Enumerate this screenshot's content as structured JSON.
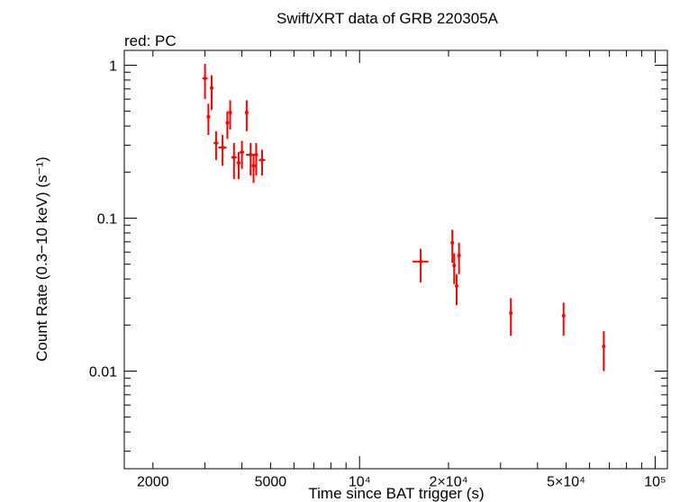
{
  "chart_data": {
    "type": "scatter",
    "title": "Swift/XRT data of GRB 220305A",
    "subtitle": "red: PC",
    "xlabel": "Time since BAT trigger (s)",
    "ylabel": "Count Rate (0.3−10 keV) (s⁻¹)",
    "xscale": "log",
    "yscale": "log",
    "xlim": [
      1600,
      110000
    ],
    "ylim": [
      0.0023,
      1.25
    ],
    "grid": false,
    "x_ticks": [
      {
        "value": 2000,
        "label": "2000"
      },
      {
        "value": 5000,
        "label": "5000"
      },
      {
        "value": 10000,
        "label": "10⁴"
      },
      {
        "value": 20000,
        "label": "2×10⁴"
      },
      {
        "value": 50000,
        "label": "5×10⁴"
      },
      {
        "value": 100000,
        "label": "10⁵"
      }
    ],
    "y_ticks": [
      {
        "value": 1,
        "label": "1"
      },
      {
        "value": 0.1,
        "label": "0.1"
      },
      {
        "value": 0.01,
        "label": "0.01"
      }
    ],
    "series": [
      {
        "color": "#ff0000",
        "points": [
          {
            "x": 3000,
            "xerr": [
              60,
              60
            ],
            "y": 0.82,
            "yerr": [
              0.22,
              0.2
            ]
          },
          {
            "x": 3080,
            "xerr": [
              40,
              40
            ],
            "y": 0.46,
            "yerr": [
              0.11,
              0.1
            ]
          },
          {
            "x": 3160,
            "xerr": [
              40,
              40
            ],
            "y": 0.71,
            "yerr": [
              0.2,
              0.15
            ]
          },
          {
            "x": 3270,
            "xerr": [
              60,
              60
            ],
            "y": 0.31,
            "yerr": [
              0.07,
              0.06
            ]
          },
          {
            "x": 3440,
            "xerr": [
              110,
              110
            ],
            "y": 0.29,
            "yerr": [
              0.07,
              0.06
            ]
          },
          {
            "x": 3570,
            "xerr": [
              40,
              40
            ],
            "y": 0.42,
            "yerr": [
              0.09,
              0.08
            ]
          },
          {
            "x": 3650,
            "xerr": [
              40,
              40
            ],
            "y": 0.49,
            "yerr": [
              0.11,
              0.1
            ]
          },
          {
            "x": 3760,
            "xerr": [
              80,
              80
            ],
            "y": 0.25,
            "yerr": [
              0.07,
              0.06
            ]
          },
          {
            "x": 3900,
            "xerr": [
              60,
              60
            ],
            "y": 0.23,
            "yerr": [
              0.05,
              0.04
            ]
          },
          {
            "x": 4000,
            "xerr": [
              70,
              70
            ],
            "y": 0.27,
            "yerr": [
              0.06,
              0.05
            ]
          },
          {
            "x": 4150,
            "xerr": [
              50,
              50
            ],
            "y": 0.49,
            "yerr": [
              0.12,
              0.1
            ]
          },
          {
            "x": 4280,
            "xerr": [
              150,
              150
            ],
            "y": 0.26,
            "yerr": [
              0.07,
              0.05
            ]
          },
          {
            "x": 4380,
            "xerr": [
              50,
              50
            ],
            "y": 0.22,
            "yerr": [
              0.05,
              0.04
            ]
          },
          {
            "x": 4470,
            "xerr": [
              60,
              60
            ],
            "y": 0.26,
            "yerr": [
              0.07,
              0.05
            ]
          },
          {
            "x": 4680,
            "xerr": [
              120,
              120
            ],
            "y": 0.24,
            "yerr": [
              0.05,
              0.04
            ]
          },
          {
            "x": 16100,
            "xerr": [
              1000,
              1000
            ],
            "y": 0.052,
            "yerr": [
              0.014,
              0.011
            ]
          },
          {
            "x": 20600,
            "xerr": [
              150,
              150
            ],
            "y": 0.069,
            "yerr": [
              0.018,
              0.015
            ]
          },
          {
            "x": 20900,
            "xerr": [
              150,
              150
            ],
            "y": 0.049,
            "yerr": [
              0.012,
              0.01
            ]
          },
          {
            "x": 21300,
            "xerr": [
              150,
              150
            ],
            "y": 0.036,
            "yerr": [
              0.009,
              0.007
            ]
          },
          {
            "x": 21700,
            "xerr": [
              150,
              150
            ],
            "y": 0.057,
            "yerr": [
              0.014,
              0.012
            ]
          },
          {
            "x": 32500,
            "xerr": [
              300,
              300
            ],
            "y": 0.024,
            "yerr": [
              0.007,
              0.006
            ]
          },
          {
            "x": 49000,
            "xerr": [
              400,
              400
            ],
            "y": 0.023,
            "yerr": [
              0.006,
              0.005
            ]
          },
          {
            "x": 67000,
            "xerr": [
              600,
              600
            ],
            "y": 0.0145,
            "yerr": [
              0.0045,
              0.0037
            ]
          }
        ]
      }
    ]
  }
}
